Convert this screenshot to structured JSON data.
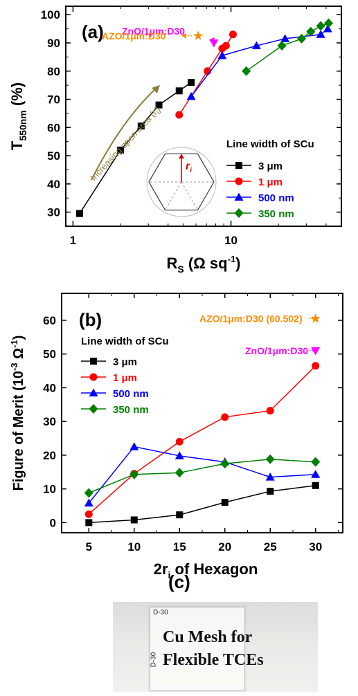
{
  "chart_data": [
    {
      "type": "line",
      "panel_label": "(a)",
      "ylabel_main": "T",
      "ylabel_sub": "550nm",
      "ylabel_unit": "(%)",
      "xlabel_main": "R",
      "xlabel_sub": "S",
      "xlabel_unit": "(Ω sq",
      "xlabel_sup": "-1",
      "xlabel_close": ")",
      "xscale": "log",
      "xlim": [
        0.9,
        50
      ],
      "ylim": [
        25,
        103
      ],
      "yticks": [
        30,
        40,
        50,
        60,
        70,
        80,
        90,
        100
      ],
      "xticks": [
        1,
        10
      ],
      "legend_title": "Line width of SCu",
      "legend_position": "center-right",
      "series": [
        {
          "name": "3 μm",
          "color": "#000000",
          "marker": "square",
          "x": [
            1.1,
            2.0,
            2.7,
            3.5,
            4.7,
            5.6
          ],
          "y": [
            29.5,
            52,
            60.5,
            68,
            73,
            76
          ]
        },
        {
          "name": "1 μm",
          "color": "#ff0000",
          "marker": "circle",
          "x": [
            4.7,
            7.1,
            8.8,
            9.3,
            10.3
          ],
          "y": [
            64.5,
            80,
            88,
            89,
            93
          ]
        },
        {
          "name": "500 nm",
          "color": "#0000ff",
          "marker": "triangle-up",
          "x": [
            5.6,
            8.8,
            14.5,
            22,
            37,
            41
          ],
          "y": [
            71,
            85.5,
            89,
            91.5,
            93,
            95
          ]
        },
        {
          "name": "350 nm",
          "color": "#008000",
          "marker": "diamond",
          "x": [
            12.5,
            21,
            28,
            32,
            37,
            41.5
          ],
          "y": [
            80,
            89,
            91.5,
            94,
            96,
            97
          ]
        }
      ],
      "annotations": {
        "zno_text": "ZnO/1μm:D30",
        "zno_point": {
          "x": 7.8,
          "y": 90
        },
        "azo_text": "AZO/1μm:D30",
        "azo_point": {
          "x": 6.2,
          "y": 92.5
        },
        "arrow_text": "Increasing open area (r",
        "arrow_sub": "i",
        "arrow_close": ")",
        "inset_label": "r",
        "inset_sub": "i"
      }
    },
    {
      "type": "line",
      "panel_label": "(b)",
      "ylabel": "Figure of Merit (10",
      "ylabel_sup": "-3",
      "ylabel_unit": " Ω",
      "ylabel_sup2": "-1",
      "ylabel_close": ")",
      "xlabel_main": "2r",
      "xlabel_sub": "i",
      "xlabel_rest": " of Hexagon",
      "xlim": [
        2,
        33
      ],
      "ylim": [
        -3,
        68
      ],
      "xticks": [
        5,
        10,
        15,
        20,
        25,
        30
      ],
      "yticks": [
        0,
        10,
        20,
        30,
        40,
        50,
        60
      ],
      "legend_title": "Line width of SCu",
      "legend_position": "top-left",
      "categories": [
        5,
        10,
        15,
        20,
        25,
        30
      ],
      "series": [
        {
          "name": "3 μm",
          "color": "#000000",
          "marker": "square",
          "values": [
            0,
            0.8,
            2.3,
            6,
            9.3,
            11
          ]
        },
        {
          "name": "1 μm",
          "color": "#ff0000",
          "marker": "circle",
          "values": [
            2.5,
            14.5,
            24,
            31.3,
            33.2,
            46.5
          ]
        },
        {
          "name": "500 nm",
          "color": "#0000ff",
          "marker": "triangle-up",
          "values": [
            5.8,
            22.5,
            19.8,
            18,
            13.5,
            14.3
          ]
        },
        {
          "name": "350 nm",
          "color": "#008000",
          "marker": "diamond",
          "values": [
            8.8,
            14.3,
            14.8,
            17.5,
            18.8,
            18
          ]
        }
      ],
      "annotations": {
        "azo_text": "AZO/1μm:D30 (60.502)",
        "azo_point": {
          "x": 30,
          "y": 60.5
        },
        "zno_text": "ZnO/1μm:D30",
        "zno_point": {
          "x": 30,
          "y": 51
        }
      }
    }
  ],
  "photo": {
    "panel_label": "(c)",
    "film_label_top": "D-30",
    "film_label_side": "D-30",
    "title_line1": "Cu Mesh for",
    "title_line2": "Flexible TCEs"
  },
  "colors": {
    "azo": "#ff8c00",
    "zno": "#ff00ff",
    "arrow": "#8b7d3a",
    "inset_arrow": "#d00000"
  }
}
